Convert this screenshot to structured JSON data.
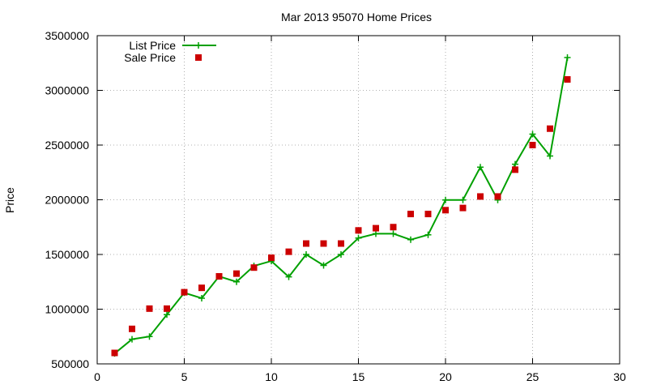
{
  "chart_data": {
    "type": "line",
    "title": "Mar 2013 95070 Home Prices",
    "xlabel": "",
    "ylabel": "Price",
    "xlim": [
      0,
      30
    ],
    "ylim": [
      500000,
      3500000
    ],
    "x_ticks": [
      0,
      5,
      10,
      15,
      20,
      25,
      30
    ],
    "y_ticks": [
      500000,
      1000000,
      1500000,
      2000000,
      2500000,
      3000000,
      3500000
    ],
    "grid": true,
    "legend_position": "top-left",
    "series": [
      {
        "name": "List Price",
        "style": "line+plus",
        "color": "#00a000",
        "points": [
          [
            1,
            595000
          ],
          [
            2,
            725000
          ],
          [
            3,
            750000
          ],
          [
            4,
            950000
          ],
          [
            5,
            1150000
          ],
          [
            6,
            1100000
          ],
          [
            7,
            1300000
          ],
          [
            8,
            1250000
          ],
          [
            9,
            1395000
          ],
          [
            10,
            1440000
          ],
          [
            11,
            1295000
          ],
          [
            12,
            1500000
          ],
          [
            13,
            1400000
          ],
          [
            14,
            1500000
          ],
          [
            15,
            1650000
          ],
          [
            16,
            1690000
          ],
          [
            17,
            1690000
          ],
          [
            18,
            1635000
          ],
          [
            19,
            1680000
          ],
          [
            20,
            1998000
          ],
          [
            21,
            1998000
          ],
          [
            22,
            2298000
          ],
          [
            23,
            1998000
          ],
          [
            24,
            2325000
          ],
          [
            25,
            2600000
          ],
          [
            26,
            2400000
          ],
          [
            27,
            3300000
          ]
        ]
      },
      {
        "name": "Sale Price",
        "style": "square",
        "color": "#cc0000",
        "points": [
          [
            1,
            600000
          ],
          [
            2,
            820000
          ],
          [
            3,
            1005000
          ],
          [
            4,
            1005000
          ],
          [
            5,
            1155000
          ],
          [
            6,
            1195000
          ],
          [
            7,
            1300000
          ],
          [
            8,
            1325000
          ],
          [
            9,
            1380000
          ],
          [
            10,
            1470000
          ],
          [
            11,
            1525000
          ],
          [
            12,
            1600000
          ],
          [
            13,
            1600000
          ],
          [
            14,
            1600000
          ],
          [
            15,
            1720000
          ],
          [
            16,
            1740000
          ],
          [
            17,
            1750000
          ],
          [
            18,
            1870000
          ],
          [
            19,
            1870000
          ],
          [
            20,
            1905000
          ],
          [
            21,
            1925000
          ],
          [
            22,
            2030000
          ],
          [
            23,
            2030000
          ],
          [
            24,
            2275000
          ],
          [
            25,
            2500000
          ],
          [
            26,
            2650000
          ],
          [
            27,
            3100000
          ]
        ]
      }
    ]
  }
}
